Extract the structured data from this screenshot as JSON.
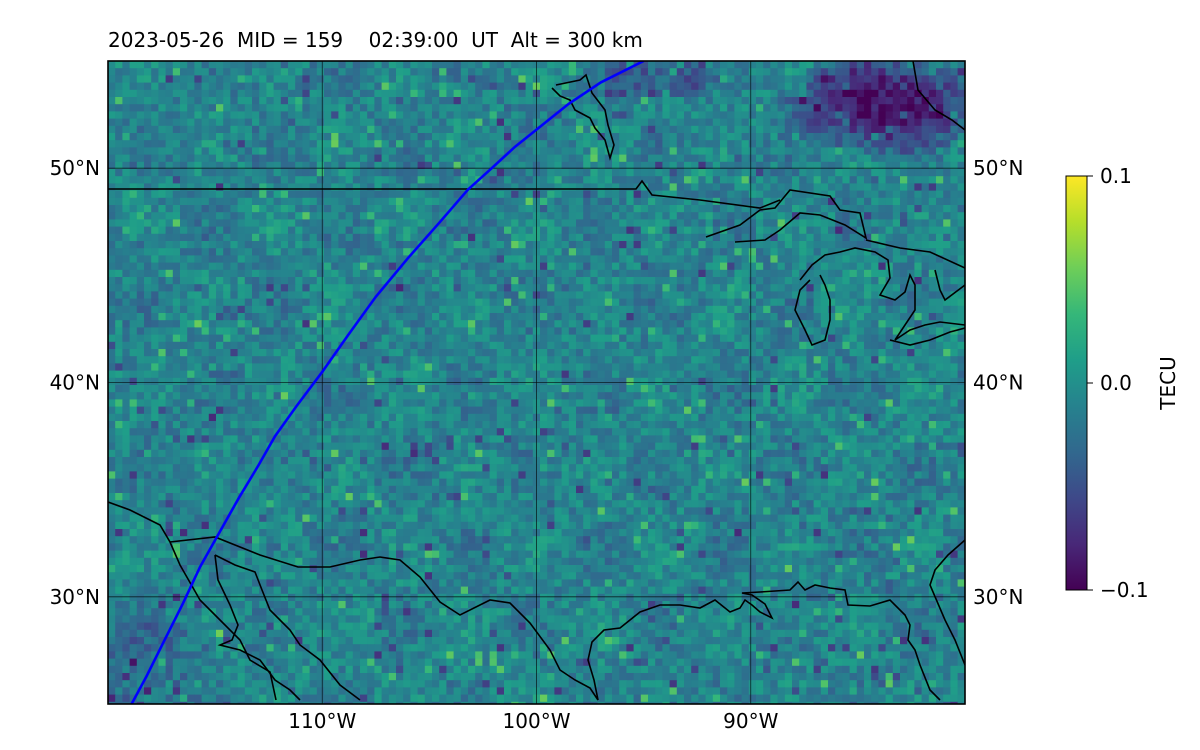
{
  "title": {
    "date": "2023-05-26",
    "mid": "MID = 159",
    "time": "02:39:00  UT",
    "alt": "Alt = 300 km"
  },
  "map": {
    "lon_range": [
      -120,
      -80
    ],
    "lat_range": [
      25,
      55
    ],
    "lon_ticks": [
      {
        "lon": -110,
        "label": "110°W"
      },
      {
        "lon": -100,
        "label": "100°W"
      },
      {
        "lon": -90,
        "label": "90°W"
      }
    ],
    "lat_ticks": [
      {
        "lat": 30,
        "label": "30°N"
      },
      {
        "lat": 40,
        "label": "40°N"
      },
      {
        "lat": 50,
        "label": "50°N"
      }
    ],
    "grid": true,
    "track_color": "#0000ff",
    "satellite_track": [
      [
        -95,
        55
      ],
      [
        -97,
        54
      ],
      [
        -98.5,
        53
      ],
      [
        -100,
        51.8
      ],
      [
        -101,
        51
      ],
      [
        -102.2,
        49.9
      ],
      [
        -103.2,
        49
      ],
      [
        -104.5,
        47.5
      ],
      [
        -106,
        45.8
      ],
      [
        -107.5,
        44
      ],
      [
        -108.8,
        42.2
      ],
      [
        -110,
        40.5
      ],
      [
        -111.2,
        38.9
      ],
      [
        -112.2,
        37.5
      ],
      [
        -113,
        36.1
      ],
      [
        -113.9,
        34.6
      ],
      [
        -114.8,
        33
      ],
      [
        -115.7,
        31.4
      ],
      [
        -116.5,
        29.7
      ],
      [
        -117.3,
        28.1
      ],
      [
        -118.2,
        26.3
      ],
      [
        -118.9,
        25
      ]
    ]
  },
  "colorbar": {
    "label": "TECU",
    "min": -0.1,
    "max": 0.1,
    "ticks": [
      {
        "value": 0.1,
        "label": "0.1"
      },
      {
        "value": 0.0,
        "label": "0.0"
      },
      {
        "value": -0.1,
        "label": "−0.1"
      }
    ],
    "colormap": [
      "#440154",
      "#482878",
      "#3e4989",
      "#31688e",
      "#26828e",
      "#1f9e89",
      "#35b779",
      "#6ece58",
      "#b5de2b",
      "#fde725"
    ]
  }
}
